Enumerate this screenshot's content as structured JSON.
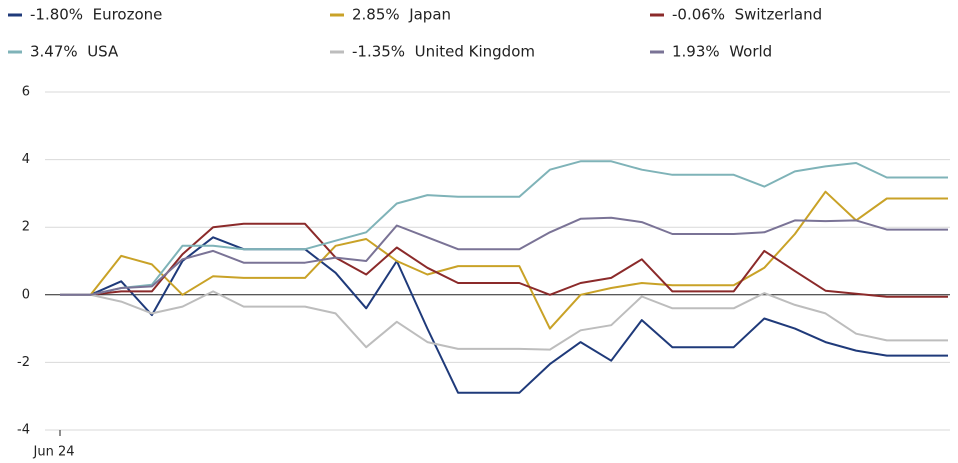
{
  "chart_data": {
    "type": "line",
    "categories": [
      "Jun 24",
      null,
      null,
      null,
      null,
      null,
      null,
      null,
      null,
      null,
      null,
      null,
      null,
      null,
      null,
      null,
      null,
      null,
      null,
      null,
      null,
      null,
      null,
      null,
      null,
      null,
      null,
      null,
      null,
      null
    ],
    "series": [
      {
        "name": "-1.80%  Eurozone",
        "color": "#1f3a7a",
        "values": [
          0,
          0,
          0.4,
          -0.6,
          1.0,
          1.7,
          1.35,
          1.35,
          1.35,
          0.65,
          -0.4,
          1.0,
          -1.0,
          -2.9,
          -2.9,
          -2.9,
          -2.05,
          -1.4,
          -1.95,
          -0.75,
          -1.55,
          -1.55,
          -1.55,
          -0.7,
          -1.0,
          -1.4,
          -1.65,
          -1.8,
          -1.8,
          -1.8
        ]
      },
      {
        "name": "2.85%  Japan",
        "color": "#c9a227",
        "values": [
          0,
          0,
          1.15,
          0.9,
          0.0,
          0.55,
          0.5,
          0.5,
          0.5,
          1.45,
          1.65,
          1.0,
          0.6,
          0.85,
          0.85,
          0.85,
          -1.0,
          0.0,
          0.2,
          0.35,
          0.28,
          0.28,
          0.28,
          0.8,
          1.8,
          3.05,
          2.2,
          2.85,
          2.85,
          2.85
        ]
      },
      {
        "name": "-0.06%  Switzerland",
        "color": "#8b2a2a",
        "values": [
          0,
          0,
          0.1,
          0.1,
          1.2,
          2.0,
          2.1,
          2.1,
          2.1,
          1.1,
          0.6,
          1.4,
          0.8,
          0.35,
          0.35,
          0.35,
          0.0,
          0.35,
          0.5,
          1.05,
          0.1,
          0.1,
          0.1,
          1.3,
          0.7,
          0.12,
          0.03,
          -0.06,
          -0.06,
          -0.06
        ]
      },
      {
        "name": "3.47%  USA",
        "color": "#7fb3b8",
        "values": [
          0,
          0,
          0.2,
          0.3,
          1.45,
          1.45,
          1.35,
          1.35,
          1.35,
          1.6,
          1.85,
          2.7,
          2.95,
          2.9,
          2.9,
          2.9,
          3.7,
          3.95,
          3.95,
          3.7,
          3.55,
          3.55,
          3.55,
          3.2,
          3.65,
          3.8,
          3.9,
          3.47,
          3.47,
          3.47
        ]
      },
      {
        "name": "-1.35%  United Kingdom",
        "color": "#bdbdbd",
        "values": [
          0,
          0,
          -0.2,
          -0.55,
          -0.35,
          0.1,
          -0.35,
          -0.35,
          -0.35,
          -0.55,
          -1.55,
          -0.8,
          -1.4,
          -1.6,
          -1.6,
          -1.6,
          -1.62,
          -1.05,
          -0.9,
          -0.05,
          -0.4,
          -0.4,
          -0.4,
          0.05,
          -0.3,
          -0.55,
          -1.15,
          -1.35,
          -1.35,
          -1.35
        ]
      },
      {
        "name": "1.93%  World",
        "color": "#7a7396",
        "values": [
          0,
          0,
          0.2,
          0.25,
          1.05,
          1.3,
          0.95,
          0.95,
          0.95,
          1.1,
          1.0,
          2.05,
          1.7,
          1.35,
          1.35,
          1.35,
          1.85,
          2.25,
          2.28,
          2.15,
          1.8,
          1.8,
          1.8,
          1.85,
          2.2,
          2.18,
          2.2,
          1.93,
          1.93,
          1.93
        ]
      }
    ],
    "ylim": [
      -4,
      6
    ],
    "yticks": [
      -4,
      -2,
      0,
      2,
      4,
      6
    ],
    "grid": true
  }
}
